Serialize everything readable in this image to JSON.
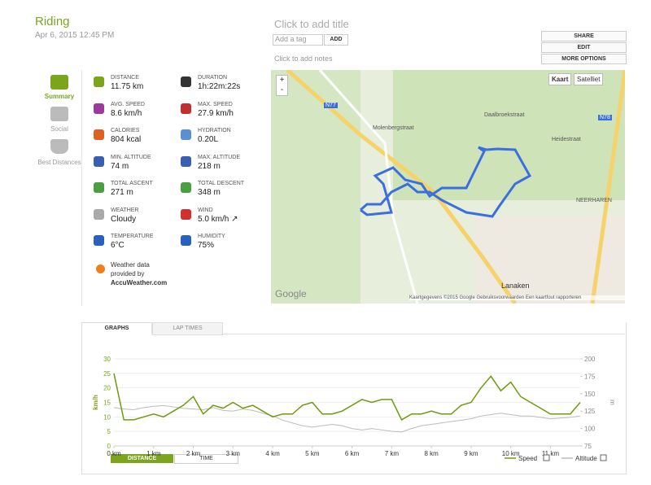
{
  "header": {
    "title": "Riding",
    "date": "Apr 6, 2015 12:45 PM",
    "title_placeholder": "Click to add title",
    "tag_placeholder": "Add a tag",
    "add_button": "ADD",
    "notes_placeholder": "Click to add notes"
  },
  "actions": [
    "SHARE",
    "EDIT",
    "MORE OPTIONS"
  ],
  "sidebar": [
    "Summary",
    "Social",
    "Best Distances"
  ],
  "stats": [
    {
      "label": "DISTANCE",
      "value": "11.75 km"
    },
    {
      "label": "DURATION",
      "value": "1h:22m:22s"
    },
    {
      "label": "AVG. SPEED",
      "value": "8.6 km/h"
    },
    {
      "label": "MAX. SPEED",
      "value": "27.9 km/h"
    },
    {
      "label": "CALORIES",
      "value": "804 kcal"
    },
    {
      "label": "HYDRATION",
      "value": "0.20L"
    },
    {
      "label": "MIN. ALTITUDE",
      "value": "74 m"
    },
    {
      "label": "MAX. ALTITUDE",
      "value": "218 m"
    },
    {
      "label": "TOTAL ASCENT",
      "value": "271 m"
    },
    {
      "label": "TOTAL DESCENT",
      "value": "348 m"
    },
    {
      "label": "WEATHER",
      "value": "Cloudy"
    },
    {
      "label": "WIND",
      "value": "5.0 km/h ↗"
    },
    {
      "label": "TEMPERATURE",
      "value": "6°C"
    },
    {
      "label": "HUMIDITY",
      "value": "75%"
    }
  ],
  "weather_note": {
    "text": "Weather data provided by",
    "source": "AccuWeather.com"
  },
  "map": {
    "buttons": [
      "Kaart",
      "Satelliet"
    ],
    "zoom": [
      "+",
      "-"
    ],
    "labels": [
      "N77",
      "N78",
      "Lanaken",
      "NEERHAREN",
      "Heidestraat",
      "Daalbroekstraat",
      "Molenbergstraat",
      "Google"
    ],
    "footer": [
      "Kaartgegevens ©2015 Google",
      "Gebruiksvoorwaarden",
      "Een kaartfout rapporteren"
    ]
  },
  "tabs": [
    "GRAPHS",
    "LAP TIMES"
  ],
  "chart_data": {
    "type": "line",
    "x": [
      0,
      0.25,
      0.5,
      0.75,
      1,
      1.25,
      1.5,
      1.75,
      2,
      2.25,
      2.5,
      2.75,
      3,
      3.25,
      3.5,
      3.75,
      4,
      4.25,
      4.5,
      4.75,
      5,
      5.25,
      5.5,
      5.75,
      6,
      6.25,
      6.5,
      6.75,
      7,
      7.25,
      7.5,
      7.75,
      8,
      8.25,
      8.5,
      8.75,
      9,
      9.25,
      9.5,
      9.75,
      10,
      10.25,
      10.5,
      10.75,
      11,
      11.25,
      11.5,
      11.75
    ],
    "series": [
      {
        "name": "Speed",
        "color": "#6f9a0e",
        "values": [
          25,
          9,
          9,
          10,
          11,
          10,
          12,
          14,
          17,
          11,
          14,
          13,
          15,
          13,
          14,
          12,
          10,
          11,
          11,
          14,
          15,
          11,
          11,
          12,
          14,
          16,
          15,
          16,
          16,
          9,
          11,
          11,
          12,
          11,
          11,
          14,
          15,
          20,
          24,
          19,
          22,
          17,
          15,
          13,
          11,
          11,
          11,
          15
        ]
      },
      {
        "name": "Altitude",
        "color": "#bbbbbb",
        "axis": "y2",
        "values": [
          130,
          128,
          127,
          130,
          132,
          133,
          131,
          129,
          128,
          127,
          130,
          126,
          125,
          128,
          126,
          122,
          118,
          112,
          108,
          104,
          102,
          104,
          106,
          104,
          100,
          98,
          100,
          98,
          96,
          95,
          100,
          104,
          106,
          108,
          110,
          112,
          114,
          118,
          120,
          122,
          120,
          118,
          118,
          116,
          114,
          115,
          116,
          118
        ]
      }
    ],
    "y_label": "km/h",
    "y2_label": "m",
    "xlim": [
      0,
      11.75
    ],
    "ylim": [
      0,
      30
    ],
    "y2lim": [
      75,
      200
    ],
    "xticks": [
      {
        "value": 0,
        "label": "0 km"
      },
      {
        "value": 1,
        "label": "1 km"
      },
      {
        "value": 2,
        "label": "2 km"
      },
      {
        "value": 3,
        "label": "3 km"
      },
      {
        "value": 4,
        "label": "4 km"
      },
      {
        "value": 5,
        "label": "5 km"
      },
      {
        "value": 6,
        "label": "6 km"
      },
      {
        "value": 7,
        "label": "7 km"
      },
      {
        "value": 8,
        "label": "8 km"
      },
      {
        "value": 9,
        "label": "9 km"
      },
      {
        "value": 10,
        "label": "10 km"
      },
      {
        "value": 11,
        "label": "11 km"
      }
    ],
    "yticks": [
      0,
      5,
      10,
      15,
      20,
      25,
      30
    ],
    "y2ticks": [
      75,
      100,
      125,
      150,
      175,
      200
    ],
    "grid": true,
    "axis_buttons": [
      "DISTANCE",
      "TIME"
    ]
  }
}
